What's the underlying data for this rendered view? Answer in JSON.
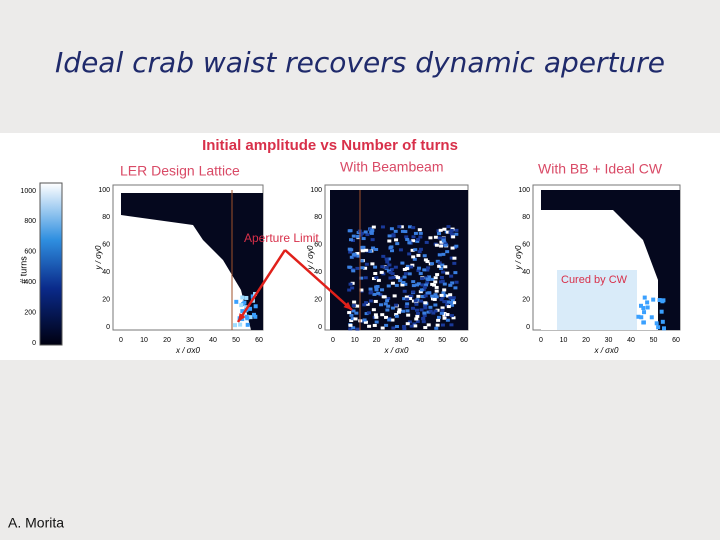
{
  "title": "Ideal crab waist recovers dynamic aperture",
  "figure": {
    "heading": "Initial amplitude vs Number of turns",
    "panels": [
      {
        "label": "LER Design Lattice"
      },
      {
        "label": "With Beambeam"
      },
      {
        "label": "With BB + Ideal CW"
      }
    ],
    "colorbar": {
      "label": "# turns",
      "ticks": [
        0,
        200,
        400,
        600,
        800,
        1000
      ]
    },
    "axes": {
      "x_label": "x / σx0",
      "y_label": "y / σy0",
      "x_ticks": [
        0,
        10,
        20,
        30,
        40,
        50,
        60
      ],
      "y_ticks": [
        0,
        20,
        40,
        60,
        80,
        100
      ]
    },
    "annotations": {
      "aperture": "Aperture Limit",
      "cured": "Cured by CW"
    }
  },
  "author": "A. Morita"
}
